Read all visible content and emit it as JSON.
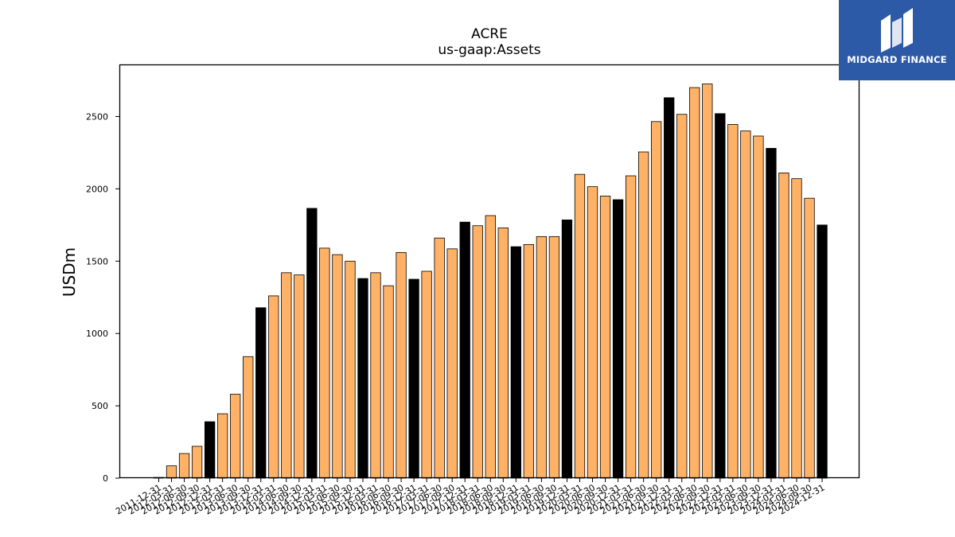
{
  "brand": {
    "name": "MIDGARD FINANCE",
    "bg_color": "#2d5aa7"
  },
  "chart_data": {
    "type": "bar",
    "title": "ACRE",
    "subtitle": "us-gaap:Assets",
    "xlabel": "",
    "ylabel": "USDm",
    "ylim": [
      0,
      2860
    ],
    "yticks": [
      0,
      500,
      1000,
      1500,
      2000,
      2500
    ],
    "grid": false,
    "colors": {
      "q4": "#000000",
      "other": "#ffb266",
      "edge": "#000000"
    },
    "categories": [
      "2011-12-31",
      "2012-03-31",
      "2012-06-30",
      "2012-09-30",
      "2012-12-31",
      "2013-03-31",
      "2013-06-30",
      "2013-09-30",
      "2013-12-31",
      "2014-03-31",
      "2014-06-30",
      "2014-09-30",
      "2014-12-31",
      "2015-03-31",
      "2015-06-30",
      "2015-09-30",
      "2015-12-31",
      "2016-03-31",
      "2016-06-30",
      "2016-09-30",
      "2016-12-31",
      "2017-03-31",
      "2017-06-30",
      "2017-09-30",
      "2017-12-31",
      "2018-03-31",
      "2018-06-30",
      "2018-09-30",
      "2018-12-31",
      "2019-03-31",
      "2019-06-30",
      "2019-09-30",
      "2019-12-31",
      "2020-03-31",
      "2020-06-30",
      "2020-09-30",
      "2020-12-31",
      "2021-03-31",
      "2021-06-30",
      "2021-09-30",
      "2021-12-31",
      "2022-03-31",
      "2022-06-30",
      "2022-09-30",
      "2022-12-31",
      "2023-03-31",
      "2023-06-30",
      "2023-09-30",
      "2023-12-31",
      "2024-03-31",
      "2024-06-30",
      "2024-09-30",
      "2024-12-31"
    ],
    "values": [
      5,
      85,
      170,
      220,
      390,
      445,
      580,
      840,
      1178,
      1260,
      1420,
      1405,
      1865,
      1590,
      1545,
      1500,
      1380,
      1420,
      1330,
      1560,
      1375,
      1430,
      1660,
      1585,
      1770,
      1745,
      1815,
      1730,
      1600,
      1615,
      1670,
      1670,
      1785,
      2100,
      2015,
      1950,
      1925,
      2090,
      2255,
      2465,
      2630,
      2515,
      2700,
      2725,
      2520,
      2445,
      2400,
      2365,
      2280,
      2110,
      2070,
      1935,
      1750
    ]
  }
}
